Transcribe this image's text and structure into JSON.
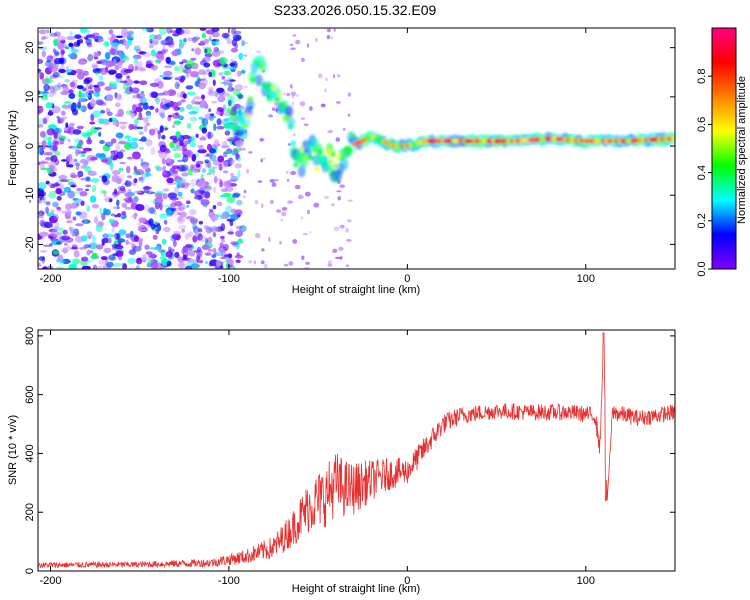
{
  "title": "S233.2026.050.15.32.E09",
  "chart_data": [
    {
      "type": "heatmap",
      "xlabel": "Height of straight line (km)",
      "ylabel": "Frequency (Hz)",
      "xlim": [
        -207,
        150
      ],
      "ylim": [
        -25,
        24
      ],
      "xticks": [
        -200,
        -100,
        0,
        100
      ],
      "yticks": [
        -20,
        -10,
        0,
        10,
        20
      ],
      "tone_track": [
        {
          "x": -100,
          "y": 7
        },
        {
          "x": -95,
          "y": 4
        },
        {
          "x": -92,
          "y": 5
        },
        {
          "x": -88,
          "y": 9
        },
        {
          "x": -85,
          "y": 17
        },
        {
          "x": -80,
          "y": 13
        },
        {
          "x": -75,
          "y": 10
        },
        {
          "x": -70,
          "y": 8
        },
        {
          "x": -66,
          "y": 5
        },
        {
          "x": -62,
          "y": -3
        },
        {
          "x": -58,
          "y": -2
        },
        {
          "x": -55,
          "y": -1
        },
        {
          "x": -50,
          "y": -3
        },
        {
          "x": -46,
          "y": -2
        },
        {
          "x": -40,
          "y": -4
        },
        {
          "x": -36,
          "y": -1
        },
        {
          "x": -32,
          "y": 0
        },
        {
          "x": -25,
          "y": 1
        },
        {
          "x": -20,
          "y": 2
        },
        {
          "x": -14,
          "y": 1
        },
        {
          "x": -8,
          "y": 0
        },
        {
          "x": 0,
          "y": 0
        },
        {
          "x": 10,
          "y": 1
        },
        {
          "x": 20,
          "y": 1
        },
        {
          "x": 40,
          "y": 1
        },
        {
          "x": 60,
          "y": 1
        },
        {
          "x": 80,
          "y": 1.5
        },
        {
          "x": 100,
          "y": 1
        },
        {
          "x": 120,
          "y": 1
        },
        {
          "x": 150,
          "y": 1.5
        }
      ],
      "colorbar": {
        "label": "Normalized spectral amplitude",
        "range": [
          0,
          1
        ],
        "ticks": [
          "0.0",
          "0.2",
          "0.4",
          "0.6",
          "0.8"
        ],
        "colors": [
          "#ffffff",
          "#8000ff",
          "#0000ff",
          "#00ffff",
          "#00ff00",
          "#ffff00",
          "#ff8000",
          "#ff0000",
          "#ff0080"
        ]
      }
    },
    {
      "type": "line",
      "xlabel": "Height of straight line (km)",
      "ylabel": "SNR (10 * v/v)",
      "xlim": [
        -207,
        150
      ],
      "ylim": [
        0,
        820
      ],
      "xticks": [
        -200,
        -100,
        0,
        100
      ],
      "yticks": [
        0,
        200,
        400,
        600,
        800
      ],
      "series": [
        {
          "name": "SNR",
          "color": "#e8302f",
          "x": [
            -207,
            -150,
            -110,
            -90,
            -75,
            -65,
            -55,
            -45,
            -40,
            -35,
            -30,
            -20,
            -10,
            0,
            10,
            20,
            30,
            50,
            70,
            90,
            105,
            108,
            110,
            112,
            115,
            130,
            150
          ],
          "y": [
            20,
            22,
            28,
            50,
            80,
            140,
            220,
            260,
            300,
            280,
            280,
            310,
            330,
            340,
            420,
            500,
            530,
            545,
            540,
            540,
            530,
            420,
            800,
            240,
            540,
            520,
            540
          ],
          "noise": [
            10,
            10,
            15,
            25,
            40,
            60,
            90,
            110,
            110,
            100,
            90,
            70,
            55,
            45,
            40,
            35,
            30,
            28,
            28,
            28,
            28,
            40,
            0,
            0,
            30,
            28,
            28
          ]
        }
      ]
    }
  ]
}
